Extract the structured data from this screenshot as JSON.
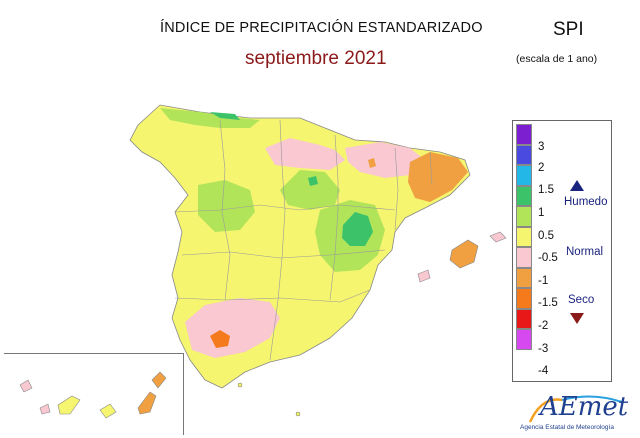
{
  "header": {
    "title": "ÍNDICE DE PRECIPITACIÓN ESTANDARIZADO",
    "period": "septiembre 2021",
    "index_code": "SPI",
    "scale_note": "(escala de 1 ano)"
  },
  "legend": {
    "ticks": [
      "3",
      "2",
      "1.5",
      "1",
      "0.5",
      "-0.5",
      "-1",
      "-1.5",
      "-2",
      "-3",
      "-4"
    ],
    "colors": [
      "#7b1fd0",
      "#4a4ae0",
      "#22b7e6",
      "#3cc36a",
      "#b2e45a",
      "#f5f570",
      "#f9c8d0",
      "#f0a040",
      "#f57a1c",
      "#e81818",
      "#d648f0"
    ],
    "categories": {
      "wet": "Humedo",
      "normal": "Normal",
      "dry": "Seco"
    },
    "wet_color": "#1a237e",
    "dry_color": "#8b1a1a"
  },
  "map_colors": {
    "normal": "#f5f570",
    "wet_light": "#b2e45a",
    "wet": "#3cc36a",
    "dry_light": "#f9c8d0",
    "dry": "#f0a040",
    "dry_strong": "#f57a1c"
  },
  "logo": {
    "text": "AEmet",
    "subtitle": "Agencia Estatal de Meteorología"
  }
}
